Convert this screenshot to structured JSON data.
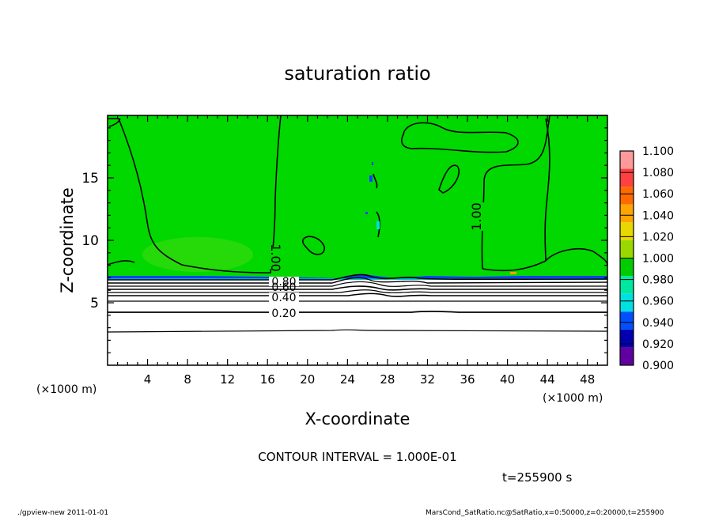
{
  "chart_data": {
    "type": "heatmap",
    "title": "saturation ratio",
    "xlabel": "X-coordinate",
    "ylabel": "Z-coordinate",
    "x_unit_left": "(×1000 m)",
    "x_unit_right": "(×1000 m)",
    "xlim": [
      0,
      50
    ],
    "ylim": [
      0,
      20
    ],
    "x_ticks": [
      "4",
      "8",
      "12",
      "16",
      "20",
      "24",
      "28",
      "32",
      "36",
      "40",
      "44",
      "48"
    ],
    "y_ticks": [
      "5",
      "10",
      "15"
    ],
    "contour_labels": [
      "1.00",
      "1.00",
      "0.80",
      "0.60",
      "0.40",
      "0.20"
    ],
    "contour_interval_text": "CONTOUR INTERVAL = 1.000E-01",
    "time_text": "t=255900 s",
    "colorbar": {
      "labels": [
        "1.100",
        "1.080",
        "1.060",
        "1.040",
        "1.020",
        "1.000",
        "0.980",
        "0.960",
        "0.940",
        "0.920",
        "0.900"
      ],
      "colors": [
        "#ff9a9a",
        "#ff4040",
        "#ff6a00",
        "#ffa500",
        "#e8d800",
        "#9ad800",
        "#00cc00",
        "#00e8a0",
        "#00e0e0",
        "#0050ff",
        "#0000b0",
        "#6000a0"
      ]
    },
    "field": {
      "background_color": "#00d800",
      "saturated_top_z": 7.2,
      "lower_layer_color": "#ffffff"
    }
  },
  "footer": {
    "left": "./gpview-new  2011-01-01",
    "right": "MarsCond_SatRatio.nc@SatRatio,x=0:50000,z=0:20000,t=255900"
  }
}
